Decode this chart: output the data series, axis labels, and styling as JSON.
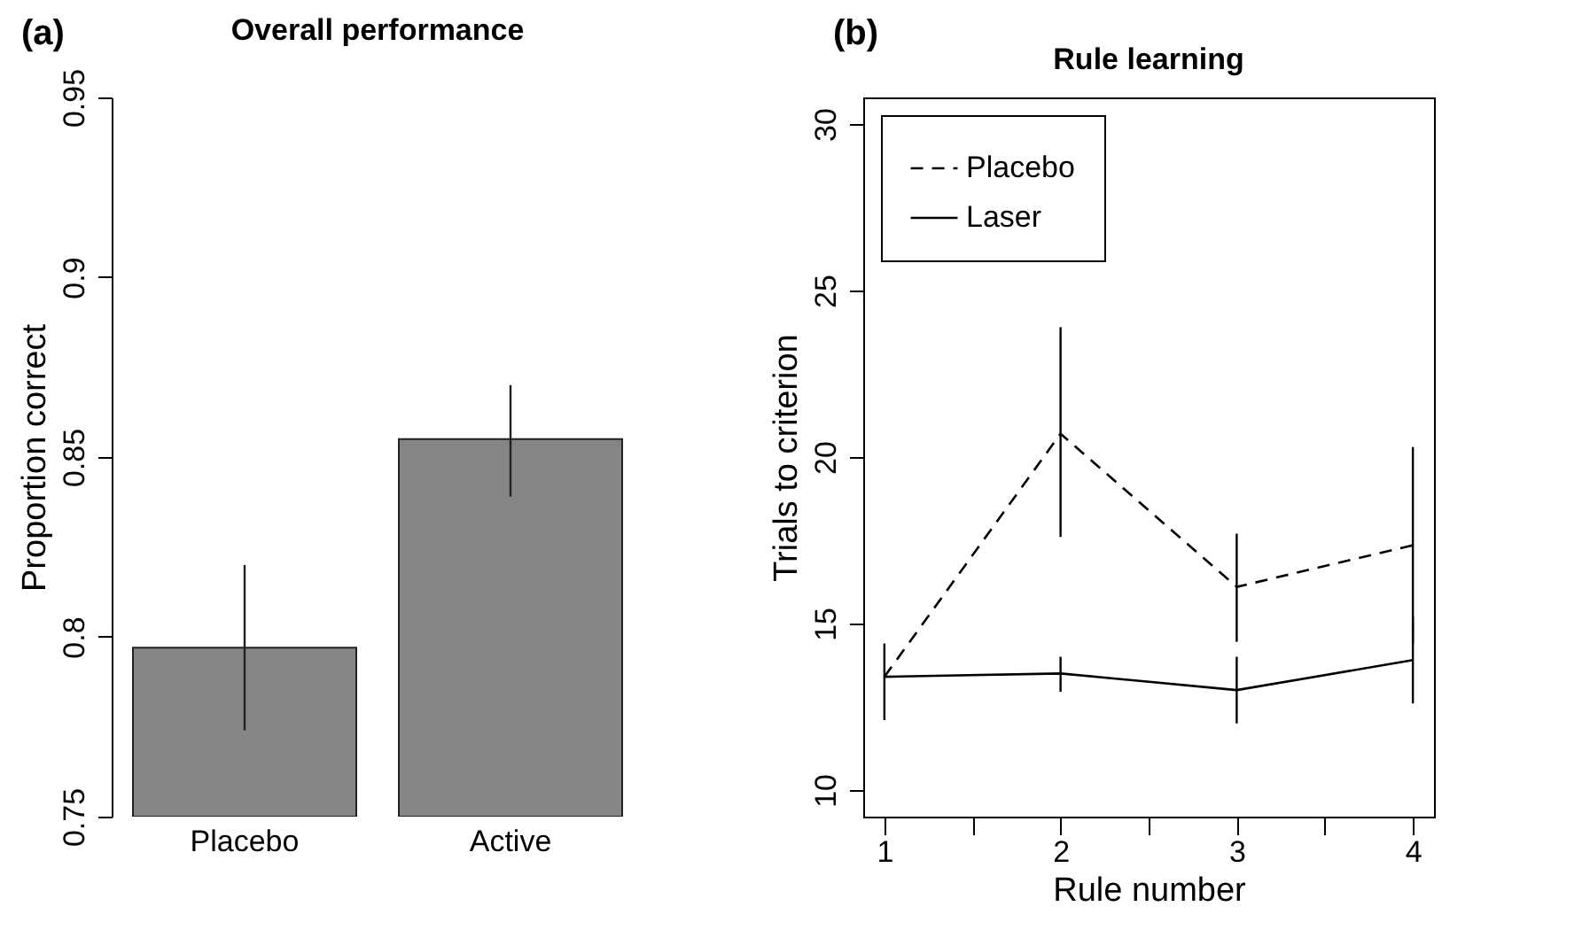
{
  "chart_data": [
    {
      "type": "bar",
      "title": "Overall performance",
      "ylabel": "Proportion correct",
      "categories": [
        "Placebo",
        "Active"
      ],
      "values": [
        0.797,
        0.855
      ],
      "errors": [
        [
          0.774,
          0.82
        ],
        [
          0.839,
          0.87
        ]
      ],
      "color": "#858585",
      "ylim": [
        0.75,
        0.95
      ],
      "yticks": [
        0.75,
        0.8,
        0.85,
        0.9,
        0.95
      ],
      "annotations": [
        "(a)"
      ]
    },
    {
      "type": "line",
      "title": "Rule learning",
      "xlabel": "Rule number",
      "ylabel": "Trials to criterion",
      "x": [
        1,
        2,
        3,
        4
      ],
      "series": [
        {
          "name": "Placebo",
          "color": "#000000",
          "line_style": "dashed",
          "values": [
            13.4,
            20.7,
            16.1,
            17.35
          ],
          "errors": [
            null,
            [
              17.6,
              23.9
            ],
            [
              14.45,
              17.7
            ],
            [
              14.4,
              20.3
            ]
          ]
        },
        {
          "name": "Laser",
          "color": "#000000",
          "line_style": "solid",
          "values": [
            13.4,
            13.5,
            13.0,
            13.9
          ],
          "errors": [
            [
              12.1,
              14.4
            ],
            [
              12.95,
              14.0
            ],
            [
              12.0,
              14.0
            ],
            [
              12.6,
              15.2
            ]
          ]
        }
      ],
      "xlim": [
        0.88,
        4.12
      ],
      "xticks": [
        1,
        {
          "value": 1.5,
          "label": null
        },
        2,
        {
          "value": 2.5,
          "label": null
        },
        3,
        {
          "value": 3.5,
          "label": null
        },
        4
      ],
      "ylim": [
        9.2,
        30.8
      ],
      "yticks": [
        10,
        15,
        20,
        25,
        30
      ],
      "legend": "top left",
      "annotations": [
        "(b)"
      ]
    }
  ]
}
